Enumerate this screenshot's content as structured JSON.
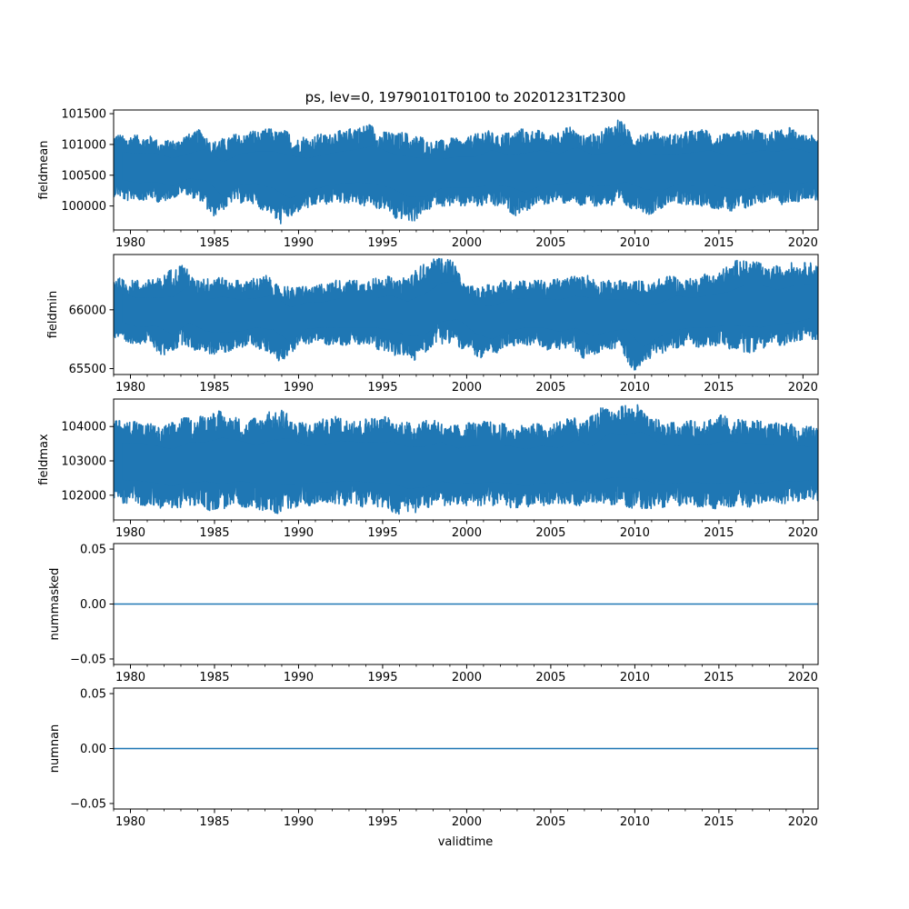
{
  "title": "ps, lev=0, 19790101T0100 to 20201231T2300",
  "xlabel": "validtime",
  "colors": {
    "series": "#1f77b4",
    "axis": "#000000",
    "background": "#ffffff"
  },
  "chart_data": [
    {
      "type": "line",
      "ylabel": "fieldmean",
      "xlim": [
        1979.0,
        2020.9
      ],
      "ylim": [
        99610,
        101560
      ],
      "x_ticks": [
        1980,
        1985,
        1990,
        1995,
        2000,
        2005,
        2010,
        2015,
        2020
      ],
      "x_tick_labels": [
        "1980",
        "1985",
        "1990",
        "1995",
        "2000",
        "2005",
        "2010",
        "2015",
        "2020"
      ],
      "y_ticks": [
        100000,
        100500,
        101000,
        101500
      ],
      "y_tick_labels": [
        "100000",
        "100500",
        "101000",
        "101500"
      ],
      "series": [
        {
          "x": [
            1979.0,
            1980.0,
            1981.0,
            1982.0,
            1983.0,
            1984.0,
            1985.0,
            1986.0,
            1987.0,
            1988.0,
            1989.0,
            1990.0,
            1991.0,
            1992.0,
            1993.0,
            1994.0,
            1995.0,
            1996.0,
            1997.0,
            1998.0,
            1999.0,
            2000.0,
            2001.0,
            2002.0,
            2003.0,
            2004.0,
            2005.0,
            2006.0,
            2007.0,
            2008.0,
            2009.0,
            2010.0,
            2011.0,
            2012.0,
            2013.0,
            2014.0,
            2015.0,
            2016.0,
            2017.0,
            2018.0,
            2019.0,
            2020.0
          ],
          "min": [
            100150,
            100080,
            100100,
            100050,
            100200,
            100100,
            99820,
            100050,
            100050,
            99920,
            99700,
            99900,
            100000,
            100050,
            100050,
            100000,
            99950,
            99760,
            99760,
            100000,
            100000,
            100000,
            100000,
            100000,
            99830,
            100000,
            100050,
            100050,
            100000,
            100000,
            100000,
            99950,
            99850,
            100050,
            100000,
            100000,
            99950,
            99900,
            100000,
            100100,
            100000,
            100100
          ],
          "max": [
            101150,
            101150,
            101150,
            101050,
            101100,
            101250,
            101050,
            101150,
            101200,
            101250,
            101250,
            101100,
            101150,
            101200,
            101250,
            101350,
            101200,
            101200,
            101150,
            101050,
            101100,
            101100,
            101250,
            101150,
            101250,
            101250,
            101150,
            101300,
            101150,
            101200,
            101430,
            101150,
            101230,
            101150,
            101200,
            101250,
            101150,
            101200,
            101250,
            101180,
            101300,
            101150
          ]
        }
      ]
    },
    {
      "type": "line",
      "ylabel": "fieldmin",
      "xlim": [
        1979.0,
        2020.9
      ],
      "ylim": [
        65450,
        66470
      ],
      "x_ticks": [
        1980,
        1985,
        1990,
        1995,
        2000,
        2005,
        2010,
        2015,
        2020
      ],
      "x_tick_labels": [
        "1980",
        "1985",
        "1990",
        "1995",
        "2000",
        "2005",
        "2010",
        "2015",
        "2020"
      ],
      "y_ticks": [
        65500,
        66000
      ],
      "y_tick_labels": [
        "65500",
        "66000"
      ],
      "series": [
        {
          "x": [
            1979.0,
            1980.0,
            1981.0,
            1982.0,
            1983.0,
            1984.0,
            1985.0,
            1986.0,
            1987.0,
            1988.0,
            1989.0,
            1990.0,
            1991.0,
            1992.0,
            1993.0,
            1994.0,
            1995.0,
            1996.0,
            1997.0,
            1998.0,
            1999.0,
            2000.0,
            2001.0,
            2002.0,
            2003.0,
            2004.0,
            2005.0,
            2006.0,
            2007.0,
            2008.0,
            2009.0,
            2010.0,
            2011.0,
            2012.0,
            2013.0,
            2014.0,
            2015.0,
            2016.0,
            2017.0,
            2018.0,
            2019.0,
            2020.0
          ],
          "min": [
            65750,
            65700,
            65720,
            65600,
            65700,
            65650,
            65620,
            65650,
            65700,
            65650,
            65550,
            65700,
            65720,
            65700,
            65700,
            65700,
            65650,
            65600,
            65570,
            65700,
            65720,
            65650,
            65580,
            65650,
            65700,
            65700,
            65650,
            65680,
            65580,
            65650,
            65680,
            65470,
            65600,
            65650,
            65700,
            65680,
            65700,
            65650,
            65630,
            65700,
            65700,
            65750
          ],
          "max": [
            66280,
            66250,
            66250,
            66300,
            66400,
            66250,
            66300,
            66250,
            66250,
            66300,
            66200,
            66200,
            66200,
            66250,
            66250,
            66250,
            66300,
            66250,
            66350,
            66430,
            66450,
            66200,
            66200,
            66250,
            66250,
            66250,
            66250,
            66280,
            66300,
            66250,
            66250,
            66250,
            66230,
            66300,
            66250,
            66300,
            66320,
            66420,
            66430,
            66350,
            66400,
            66400
          ]
        }
      ]
    },
    {
      "type": "line",
      "ylabel": "fieldmax",
      "xlim": [
        1979.0,
        2020.9
      ],
      "ylim": [
        101280,
        104800
      ],
      "x_ticks": [
        1980,
        1985,
        1990,
        1995,
        2000,
        2005,
        2010,
        2015,
        2020
      ],
      "x_tick_labels": [
        "1980",
        "1985",
        "1990",
        "1995",
        "2000",
        "2005",
        "2010",
        "2015",
        "2020"
      ],
      "y_ticks": [
        102000,
        103000,
        104000
      ],
      "y_tick_labels": [
        "102000",
        "103000",
        "104000"
      ],
      "series": [
        {
          "x": [
            1979.0,
            1980.0,
            1981.0,
            1982.0,
            1983.0,
            1984.0,
            1985.0,
            1986.0,
            1987.0,
            1988.0,
            1989.0,
            1990.0,
            1991.0,
            1992.0,
            1993.0,
            1994.0,
            1995.0,
            1996.0,
            1997.0,
            1998.0,
            1999.0,
            2000.0,
            2001.0,
            2002.0,
            2003.0,
            2004.0,
            2005.0,
            2006.0,
            2007.0,
            2008.0,
            2009.0,
            2010.0,
            2011.0,
            2012.0,
            2013.0,
            2014.0,
            2015.0,
            2016.0,
            2017.0,
            2018.0,
            2019.0,
            2020.0
          ],
          "min": [
            101800,
            101750,
            101700,
            101600,
            101650,
            101700,
            101500,
            101700,
            101650,
            101550,
            101450,
            101700,
            101700,
            101700,
            101700,
            101650,
            101600,
            101450,
            101500,
            101700,
            101700,
            101700,
            101700,
            101700,
            101600,
            101700,
            101700,
            101700,
            101700,
            101700,
            101750,
            101600,
            101550,
            101700,
            101700,
            101650,
            101600,
            101700,
            101650,
            101800,
            101750,
            101850
          ],
          "max": [
            104150,
            104200,
            104100,
            104000,
            104250,
            104250,
            104500,
            104300,
            104150,
            104400,
            104500,
            104100,
            104150,
            104300,
            104250,
            104250,
            104300,
            104150,
            104150,
            104250,
            104000,
            104100,
            104150,
            104100,
            104000,
            104100,
            104000,
            104350,
            104100,
            104600,
            104550,
            104700,
            104250,
            104100,
            104150,
            104200,
            104350,
            104200,
            104200,
            104100,
            104100,
            104000
          ]
        }
      ]
    },
    {
      "type": "line",
      "ylabel": "nummasked",
      "xlim": [
        1979.0,
        2020.9
      ],
      "ylim": [
        -0.055,
        0.055
      ],
      "x_ticks": [
        1980,
        1985,
        1990,
        1995,
        2000,
        2005,
        2010,
        2015,
        2020
      ],
      "x_tick_labels": [
        "1980",
        "1985",
        "1990",
        "1995",
        "2000",
        "2005",
        "2010",
        "2015",
        "2020"
      ],
      "y_ticks": [
        -0.05,
        0.0,
        0.05
      ],
      "y_tick_labels": [
        "−0.05",
        "0.00",
        "0.05"
      ],
      "series": [
        {
          "x": [
            1979.0,
            2020.9
          ],
          "y": [
            0,
            0
          ]
        }
      ]
    },
    {
      "type": "line",
      "ylabel": "numnan",
      "xlim": [
        1979.0,
        2020.9
      ],
      "ylim": [
        -0.055,
        0.055
      ],
      "x_ticks": [
        1980,
        1985,
        1990,
        1995,
        2000,
        2005,
        2010,
        2015,
        2020
      ],
      "x_tick_labels": [
        "1980",
        "1985",
        "1990",
        "1995",
        "2000",
        "2005",
        "2010",
        "2015",
        "2020"
      ],
      "y_ticks": [
        -0.05,
        0.0,
        0.05
      ],
      "y_tick_labels": [
        "−0.05",
        "0.00",
        "0.05"
      ],
      "series": [
        {
          "x": [
            1979.0,
            2020.9
          ],
          "y": [
            0,
            0
          ]
        }
      ]
    }
  ]
}
